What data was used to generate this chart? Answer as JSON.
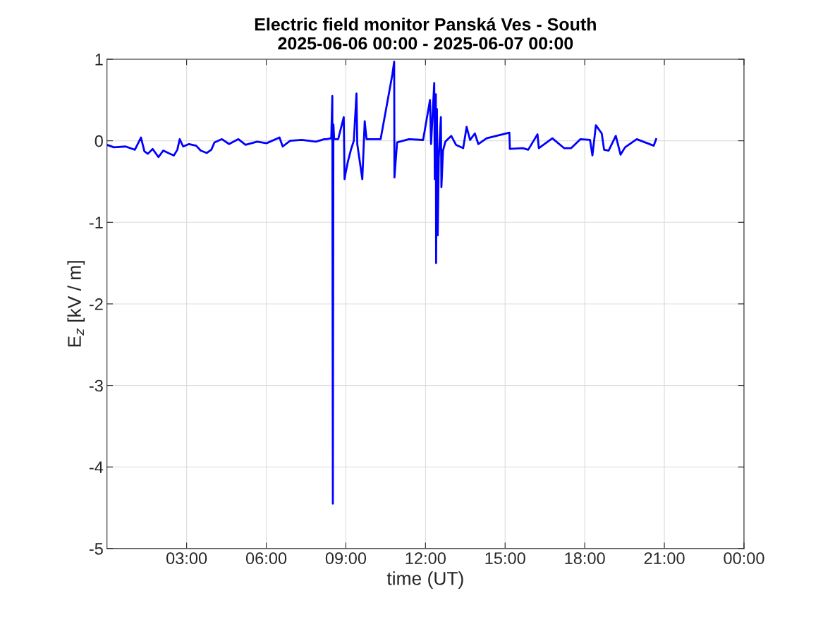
{
  "chart_data": {
    "type": "line",
    "title": "Electric field monitor Panská Ves - South\n2025-06-06 00:00 - 2025-06-07 00:00",
    "xlabel": "time (UT)",
    "ylabel": "E$_{z}$ [kV / m]",
    "x": [
      0,
      0.26,
      0.7,
      1.05,
      1.28,
      1.41,
      1.54,
      1.72,
      1.94,
      2.12,
      2.38,
      2.52,
      2.65,
      2.74,
      2.87,
      3.09,
      3.36,
      3.53,
      3.76,
      3.93,
      4.05,
      4.33,
      4.6,
      4.95,
      5.22,
      5.66,
      6.01,
      6.5,
      6.62,
      6.9,
      7.34,
      7.87,
      8.19,
      8.27,
      8.45,
      8.49,
      8.51,
      8.53,
      8.56,
      8.71,
      8.92,
      8.95,
      9.0,
      9.08,
      9.2,
      9.3,
      9.4,
      9.43,
      9.62,
      9.71,
      9.78,
      10.31,
      10.75,
      10.82,
      10.83,
      10.93,
      11.38,
      11.91,
      12.17,
      12.21,
      12.33,
      12.35,
      12.39,
      12.4,
      12.43,
      12.46,
      12.5,
      12.58,
      12.6,
      12.66,
      12.75,
      12.97,
      13.15,
      13.42,
      13.55,
      13.68,
      13.86,
      13.99,
      14.3,
      15.16,
      15.18,
      15.67,
      15.87,
      16.22,
      16.27,
      16.78,
      17.22,
      17.49,
      17.84,
      18.2,
      18.29,
      18.42,
      18.64,
      18.73,
      18.9,
      19.17,
      19.35,
      19.52,
      19.96,
      20.6,
      20.69
    ],
    "series": [
      {
        "color": "#0000ff",
        "values": [
          -0.05,
          -0.08,
          -0.07,
          -0.11,
          0.04,
          -0.13,
          -0.16,
          -0.1,
          -0.2,
          -0.12,
          -0.16,
          -0.18,
          -0.11,
          0.02,
          -0.07,
          -0.04,
          -0.06,
          -0.12,
          -0.15,
          -0.11,
          -0.02,
          0.02,
          -0.04,
          0.02,
          -0.05,
          -0.01,
          -0.03,
          0.04,
          -0.07,
          0.0,
          0.01,
          -0.01,
          0.02,
          0.02,
          0.03,
          0.55,
          -4.45,
          0.2,
          0.02,
          0.02,
          0.29,
          -0.47,
          -0.38,
          -0.25,
          -0.1,
          0.0,
          0.58,
          -0.04,
          -0.47,
          0.24,
          0.02,
          0.02,
          0.81,
          0.97,
          -0.45,
          -0.02,
          0.02,
          0.01,
          0.5,
          -0.04,
          0.71,
          -0.47,
          0.57,
          -1.5,
          0.39,
          -1.16,
          -0.21,
          0.29,
          -0.57,
          -0.12,
          -0.01,
          0.06,
          -0.05,
          -0.09,
          0.17,
          0.01,
          0.09,
          -0.04,
          0.03,
          0.1,
          -0.1,
          -0.09,
          -0.11,
          0.08,
          -0.09,
          0.03,
          -0.09,
          -0.09,
          0.02,
          0.01,
          -0.18,
          0.19,
          0.09,
          -0.11,
          -0.12,
          0.06,
          -0.17,
          -0.08,
          0.02,
          -0.06,
          0.02
        ]
      }
    ],
    "xlim": [
      0,
      24
    ],
    "xticks": [
      {
        "value": 3,
        "label": "03:00"
      },
      {
        "value": 6,
        "label": "06:00"
      },
      {
        "value": 9,
        "label": "09:00"
      },
      {
        "value": 12,
        "label": "12:00"
      },
      {
        "value": 15,
        "label": "15:00"
      },
      {
        "value": 18,
        "label": "18:00"
      },
      {
        "value": 21,
        "label": "21:00"
      },
      {
        "value": 24,
        "label": "00:00"
      }
    ],
    "ylim": [
      -5,
      1
    ],
    "yticks": [
      -5,
      -4,
      -3,
      -2,
      -1,
      0,
      1
    ],
    "grid": true,
    "legend": false,
    "marker": "none",
    "line_style": "solid"
  }
}
